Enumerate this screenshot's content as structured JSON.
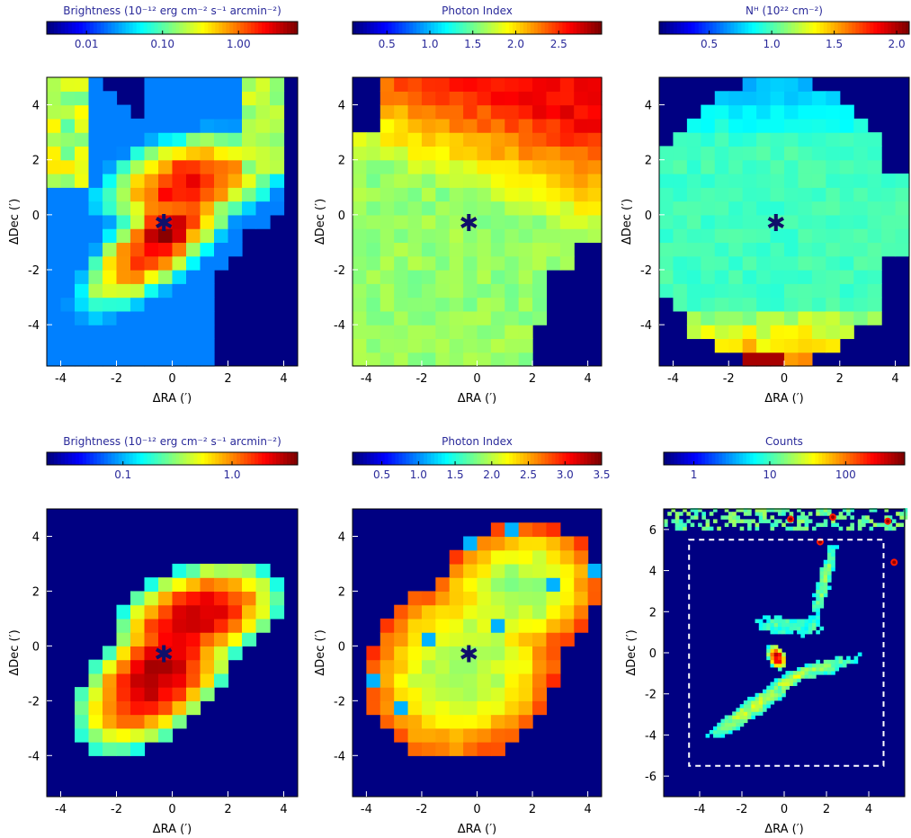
{
  "chart_data": [
    {
      "type": "heatmap",
      "colorbar": {
        "title": "Brightness (10⁻¹² erg cm⁻² s⁻¹ arcmin⁻²)",
        "scale": "log",
        "range": [
          0.003,
          6.0
        ],
        "ticks": [
          {
            "v": 0.01,
            "label": "0.01"
          },
          {
            "v": 0.1,
            "label": "0.10"
          },
          {
            "v": 1.0,
            "label": "1.00"
          }
        ]
      },
      "xlabel": "ΔRA (′)",
      "ylabel": "ΔDec (′)",
      "xlim": [
        -4.5,
        4.5
      ],
      "ylim": [
        -5.5,
        5.0
      ],
      "xticks": [
        "-4",
        "-2",
        "0",
        "2",
        "4"
      ],
      "yticks": [
        "-4",
        "-2",
        "0",
        "2",
        "4"
      ],
      "marker": {
        "symbol": "✱",
        "x": -0.3,
        "y": -0.3
      },
      "model": "brightness-1"
    },
    {
      "type": "heatmap",
      "colorbar": {
        "title": "Photon Index",
        "scale": "linear",
        "range": [
          0.1,
          3.0
        ],
        "ticks": [
          {
            "v": 0.5,
            "label": "0.5"
          },
          {
            "v": 1.0,
            "label": "1.0"
          },
          {
            "v": 1.5,
            "label": "1.5"
          },
          {
            "v": 2.0,
            "label": "2.0"
          },
          {
            "v": 2.5,
            "label": "2.5"
          }
        ]
      },
      "xlabel": "ΔRA (′)",
      "ylabel": "ΔDec (′)",
      "xlim": [
        -4.5,
        4.5
      ],
      "ylim": [
        -5.5,
        5.0
      ],
      "xticks": [
        "-4",
        "-2",
        "0",
        "2",
        "4"
      ],
      "yticks": [
        "-4",
        "-2",
        "0",
        "2",
        "4"
      ],
      "marker": {
        "symbol": "✱",
        "x": -0.3,
        "y": -0.3
      },
      "model": "index-1"
    },
    {
      "type": "heatmap",
      "colorbar": {
        "title": "Nᴴ (10²² cm⁻²)",
        "scale": "linear",
        "range": [
          0.1,
          2.1
        ],
        "ticks": [
          {
            "v": 0.5,
            "label": "0.5"
          },
          {
            "v": 1.0,
            "label": "1.0"
          },
          {
            "v": 1.5,
            "label": "1.5"
          },
          {
            "v": 2.0,
            "label": "2.0"
          }
        ]
      },
      "xlabel": "ΔRA (′)",
      "ylabel": "ΔDec (′)",
      "xlim": [
        -4.5,
        4.5
      ],
      "ylim": [
        -5.5,
        5.0
      ],
      "xticks": [
        "-4",
        "-2",
        "0",
        "2",
        "4"
      ],
      "yticks": [
        "-4",
        "-2",
        "0",
        "2",
        "4"
      ],
      "marker": {
        "symbol": "✱",
        "x": -0.3,
        "y": -0.3
      },
      "model": "nh-1"
    },
    {
      "type": "heatmap",
      "colorbar": {
        "title": "Brightness (10⁻¹² erg cm⁻² s⁻¹ arcmin⁻²)",
        "scale": "log",
        "range": [
          0.02,
          4.0
        ],
        "ticks": [
          {
            "v": 0.1,
            "label": "0.1"
          },
          {
            "v": 1.0,
            "label": "1.0"
          }
        ]
      },
      "xlabel": "ΔRA (′)",
      "ylabel": "ΔDec (′)",
      "xlim": [
        -4.5,
        4.5
      ],
      "ylim": [
        -5.5,
        5.0
      ],
      "xticks": [
        "-4",
        "-2",
        "0",
        "2",
        "4"
      ],
      "yticks": [
        "-4",
        "-2",
        "0",
        "2",
        "4"
      ],
      "marker": {
        "symbol": "✱",
        "x": -0.3,
        "y": -0.3
      },
      "model": "brightness-2"
    },
    {
      "type": "heatmap",
      "colorbar": {
        "title": "Photon Index",
        "scale": "linear",
        "range": [
          0.1,
          3.5
        ],
        "ticks": [
          {
            "v": 0.5,
            "label": "0.5"
          },
          {
            "v": 1.0,
            "label": "1.0"
          },
          {
            "v": 1.5,
            "label": "1.5"
          },
          {
            "v": 2.0,
            "label": "2.0"
          },
          {
            "v": 2.5,
            "label": "2.5"
          },
          {
            "v": 3.0,
            "label": "3.0"
          },
          {
            "v": 3.5,
            "label": "3.5"
          }
        ]
      },
      "xlabel": "ΔRA (′)",
      "ylabel": "ΔDec (′)",
      "xlim": [
        -4.5,
        4.5
      ],
      "ylim": [
        -5.5,
        5.0
      ],
      "xticks": [
        "-4",
        "-2",
        "0",
        "2",
        "4"
      ],
      "yticks": [
        "-4",
        "-2",
        "0",
        "2",
        "4"
      ],
      "marker": {
        "symbol": "✱",
        "x": -0.3,
        "y": -0.3
      },
      "model": "index-2"
    },
    {
      "type": "heatmap",
      "colorbar": {
        "title": "Counts",
        "scale": "log",
        "range": [
          0.4,
          600
        ],
        "ticks": [
          {
            "v": 1,
            "label": "1"
          },
          {
            "v": 10,
            "label": "10"
          },
          {
            "v": 100,
            "label": "100"
          }
        ]
      },
      "xlabel": "ΔRA (′)",
      "ylabel": "ΔDec (′)",
      "xlim": [
        -5.7,
        5.7
      ],
      "ylim": [
        -7.0,
        7.0
      ],
      "xticks": [
        "-4",
        "-2",
        "0",
        "2",
        "4"
      ],
      "yticks": [
        "-6",
        "-4",
        "-2",
        "0",
        "2",
        "4",
        "6"
      ],
      "region_box": {
        "x0": -4.5,
        "x1": 4.7,
        "y0": -5.5,
        "y1": 5.5,
        "style": "dashed",
        "color": "#ffffff"
      },
      "model": "counts"
    }
  ]
}
